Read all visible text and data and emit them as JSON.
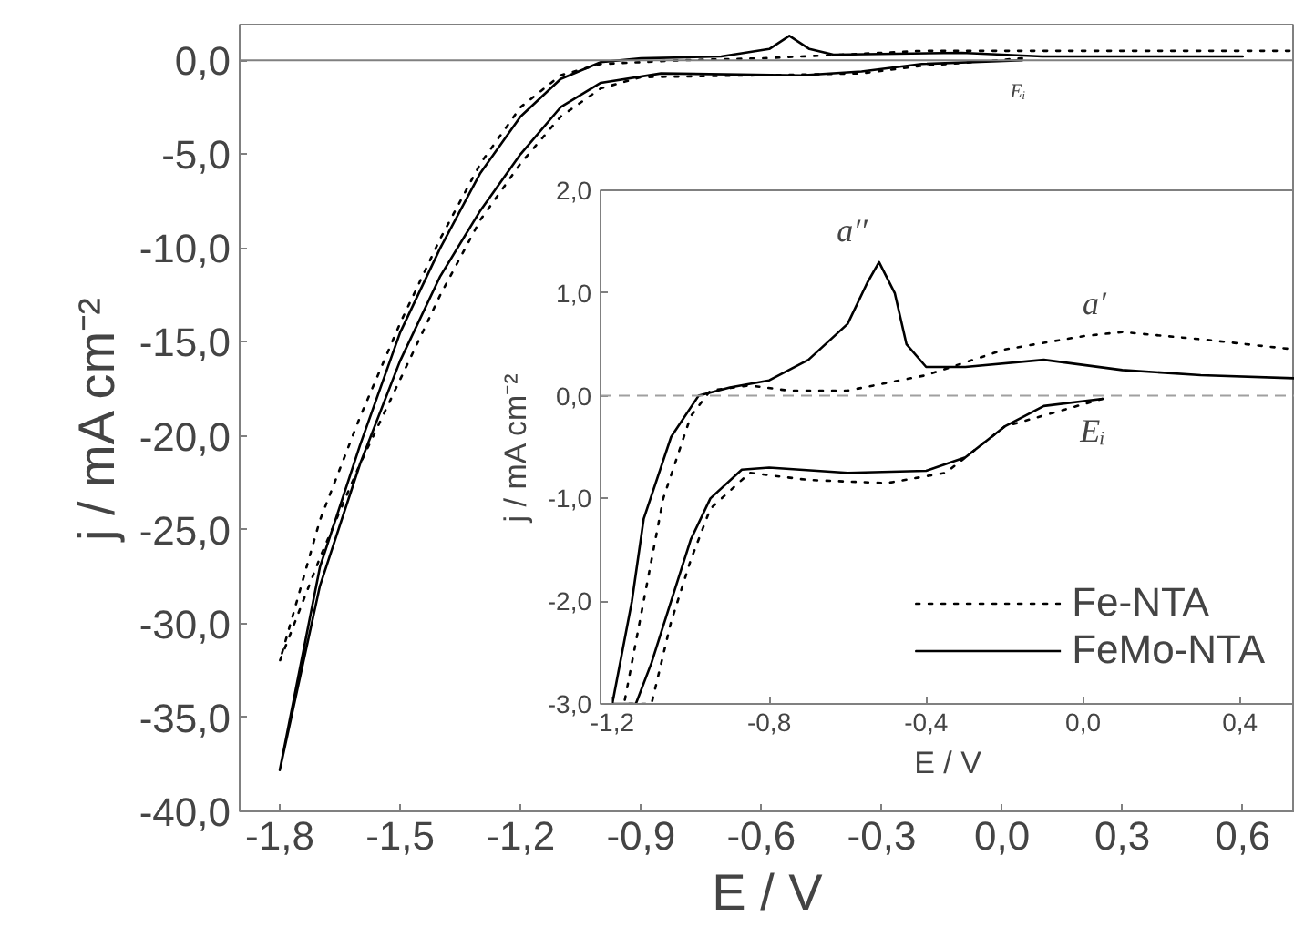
{
  "chart_data": [
    {
      "type": "line",
      "xlabel": "E / V",
      "ylabel": "j / mA cm⁻²",
      "xlim": [
        -1.9,
        0.73
      ],
      "ylim": [
        -40,
        1.9
      ],
      "xticks": [
        {
          "value": -1.8,
          "label": "-1,8"
        },
        {
          "value": -1.5,
          "label": "-1,5"
        },
        {
          "value": -1.2,
          "label": "-1,2"
        },
        {
          "value": -0.9,
          "label": "-0,9"
        },
        {
          "value": -0.6,
          "label": "-0,6"
        },
        {
          "value": -0.3,
          "label": "-0,3"
        },
        {
          "value": 0,
          "label": "0,0"
        },
        {
          "value": 0.3,
          "label": "0,3"
        },
        {
          "value": 0.6,
          "label": "0,6"
        }
      ],
      "yticks": [
        {
          "value": -40,
          "label": "-40,0"
        },
        {
          "value": -35,
          "label": "-35,0"
        },
        {
          "value": -30,
          "label": "-30,0"
        },
        {
          "value": -25,
          "label": "-25,0"
        },
        {
          "value": -20,
          "label": "-20,0"
        },
        {
          "value": -15,
          "label": "-15,0"
        },
        {
          "value": -10,
          "label": "-10,0"
        },
        {
          "value": -5,
          "label": "-5,0"
        },
        {
          "value": 0,
          "label": "0,0"
        }
      ],
      "grid": false,
      "legend": false,
      "series": [
        {
          "color": "#000000",
          "line_style": "dotted",
          "x": [
            0.05,
            -0.2,
            -0.35,
            -0.6,
            -0.9,
            -1.0,
            -1.1,
            -1.2,
            -1.3,
            -1.4,
            -1.5,
            -1.6,
            -1.7,
            -1.8,
            -1.7,
            -1.6,
            -1.5,
            -1.4,
            -1.3,
            -1.2,
            -1.1,
            -1.0,
            -0.8,
            -0.6,
            -0.4,
            -0.2,
            0.2,
            0.72
          ],
          "values": [
            0.1,
            -0.3,
            -0.7,
            -0.8,
            -0.9,
            -1.5,
            -3,
            -5.5,
            -8.5,
            -12.5,
            -17,
            -21.5,
            -26.5,
            -32,
            -24.5,
            -19,
            -14,
            -9.5,
            -5.5,
            -2.5,
            -0.8,
            -0.2,
            0.0,
            0.1,
            0.3,
            0.5,
            0.5,
            0.5
          ]
        },
        {
          "color": "#000000",
          "line_style": "solid",
          "x": [
            0.05,
            -0.2,
            -0.35,
            -0.5,
            -0.85,
            -1.0,
            -1.1,
            -1.2,
            -1.3,
            -1.4,
            -1.5,
            -1.6,
            -1.7,
            -1.8,
            -1.7,
            -1.6,
            -1.5,
            -1.4,
            -1.3,
            -1.2,
            -1.1,
            -1.0,
            -0.9,
            -0.7,
            -0.58,
            -0.53,
            -0.48,
            -0.42,
            -0.1,
            0.1,
            0.6
          ],
          "values": [
            0.0,
            -0.2,
            -0.6,
            -0.8,
            -0.7,
            -1.2,
            -2.5,
            -5,
            -8,
            -11.5,
            -16,
            -21.5,
            -28,
            -37.8,
            -27,
            -20.5,
            -14.5,
            -10,
            -6,
            -3,
            -1,
            -0.1,
            0.1,
            0.2,
            0.6,
            1.3,
            0.6,
            0.3,
            0.4,
            0.2,
            0.2
          ]
        }
      ],
      "ref_lines": [
        {
          "axis": "y",
          "value": 0,
          "color": "#808080",
          "line_style": "solid"
        }
      ],
      "annotations": [
        "Eᵢ"
      ]
    },
    {
      "type": "line",
      "xlabel": "E / V",
      "ylabel": "j / mA cm⁻²",
      "xlim": [
        -1.23,
        0.54
      ],
      "ylim": [
        -3,
        2
      ],
      "xticks": [
        {
          "value": -1.2,
          "label": "-1,2"
        },
        {
          "value": -0.8,
          "label": "-0,8"
        },
        {
          "value": -0.4,
          "label": "-0,4"
        },
        {
          "value": 0,
          "label": "0,0"
        },
        {
          "value": 0.4,
          "label": "0,4"
        }
      ],
      "yticks": [
        {
          "value": -3,
          "label": "-3,0"
        },
        {
          "value": -2,
          "label": "-2,0"
        },
        {
          "value": -1,
          "label": "-1,0"
        },
        {
          "value": 0,
          "label": "0,0"
        },
        {
          "value": 1,
          "label": "1,0"
        },
        {
          "value": 2,
          "label": "2,0"
        }
      ],
      "grid": false,
      "legend": "bottom right",
      "series": [
        {
          "name": "Fe-NTA",
          "color": "#000000",
          "line_style": "dotted",
          "x": [
            0.05,
            -0.2,
            -0.35,
            -0.5,
            -0.7,
            -0.85,
            -0.95,
            -1.0,
            -1.05,
            -1.1,
            -1.17,
            -1.12,
            -1.07,
            -1.0,
            -0.95,
            -0.85,
            -0.75,
            -0.6,
            -0.4,
            -0.2,
            0.0,
            0.1,
            0.3,
            0.54
          ],
          "values": [
            -0.03,
            -0.3,
            -0.75,
            -0.85,
            -0.82,
            -0.75,
            -1.1,
            -1.6,
            -2.2,
            -3.0,
            -3.0,
            -2.0,
            -1.0,
            -0.2,
            0.05,
            0.1,
            0.05,
            0.05,
            0.2,
            0.45,
            0.58,
            0.62,
            0.55,
            0.45
          ]
        },
        {
          "name": "FeMo-NTA",
          "color": "#000000",
          "line_style": "solid",
          "x": [
            0.05,
            -0.1,
            -0.2,
            -0.3,
            -0.4,
            -0.6,
            -0.8,
            -0.87,
            -0.95,
            -1.0,
            -1.05,
            -1.1,
            -1.14,
            -1.2,
            -1.15,
            -1.12,
            -1.05,
            -0.98,
            -0.9,
            -0.8,
            -0.7,
            -0.6,
            -0.55,
            -0.52,
            -0.48,
            -0.45,
            -0.4,
            -0.3,
            -0.1,
            0.1,
            0.3,
            0.54
          ],
          "values": [
            -0.03,
            -0.1,
            -0.3,
            -0.6,
            -0.73,
            -0.75,
            -0.7,
            -0.72,
            -1.0,
            -1.4,
            -2.0,
            -2.6,
            -3.0,
            -3.0,
            -2.0,
            -1.2,
            -0.4,
            0.0,
            0.08,
            0.15,
            0.35,
            0.7,
            1.1,
            1.3,
            1.0,
            0.5,
            0.28,
            0.28,
            0.35,
            0.25,
            0.2,
            0.17
          ]
        }
      ],
      "ref_lines": [
        {
          "axis": "y",
          "value": 0,
          "color": "#a0a0a0",
          "line_style": "dashed"
        }
      ],
      "annotations": [
        "a′′",
        "a′",
        "Eᵢ"
      ]
    }
  ]
}
